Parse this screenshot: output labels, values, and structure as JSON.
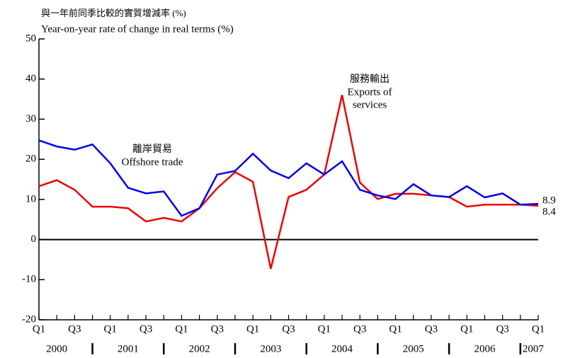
{
  "chart_data": {
    "type": "line",
    "y_label_lines": [
      "與一年前同季比較的實質增減率 (%)",
      "Year-on-year rate of change in real terms (%)"
    ],
    "categories": [
      "Q1",
      null,
      "Q3",
      null,
      "Q1",
      null,
      "Q3",
      null,
      "Q1",
      null,
      "Q3",
      null,
      "Q1",
      null,
      "Q3",
      null,
      "Q1",
      null,
      "Q3",
      null,
      "Q1",
      null,
      "Q3",
      null,
      "Q1",
      null,
      "Q3",
      null,
      "Q1"
    ],
    "years": [
      "2000",
      "2001",
      "2002",
      "2003",
      "2004",
      "2005",
      "2006",
      "2007"
    ],
    "series": [
      {
        "name": "Offshore trade",
        "name_zh": "離岸貿易",
        "color": "#0000ee",
        "values": [
          24.7,
          23.2,
          22.4,
          23.7,
          19,
          12.9,
          11.5,
          12,
          5.9,
          7.8,
          16.2,
          17.1,
          21.4,
          17.2,
          15.3,
          19,
          16.2,
          19.5,
          12.4,
          11,
          10.1,
          13.8,
          11,
          10.6,
          13.3,
          10.5,
          11.5,
          8.7,
          8.9
        ]
      },
      {
        "name": "Exports of services",
        "name_zh": "服務輸出",
        "name_lines": [
          "Exports of",
          "services"
        ],
        "color": "#ee0000",
        "values": [
          13.3,
          14.8,
          12.4,
          8.2,
          8.2,
          7.8,
          4.5,
          5.4,
          4.5,
          7.8,
          12.8,
          16.8,
          14.4,
          -7.3,
          10.6,
          12.4,
          16.2,
          36,
          14.2,
          10.1,
          11.4,
          11.4,
          11,
          10.6,
          8.2,
          8.7,
          8.7,
          8.7,
          8.4
        ]
      }
    ],
    "ylim": [
      -20,
      50
    ],
    "yticks": [
      -20,
      -10,
      0,
      10,
      20,
      30,
      40,
      50
    ]
  }
}
